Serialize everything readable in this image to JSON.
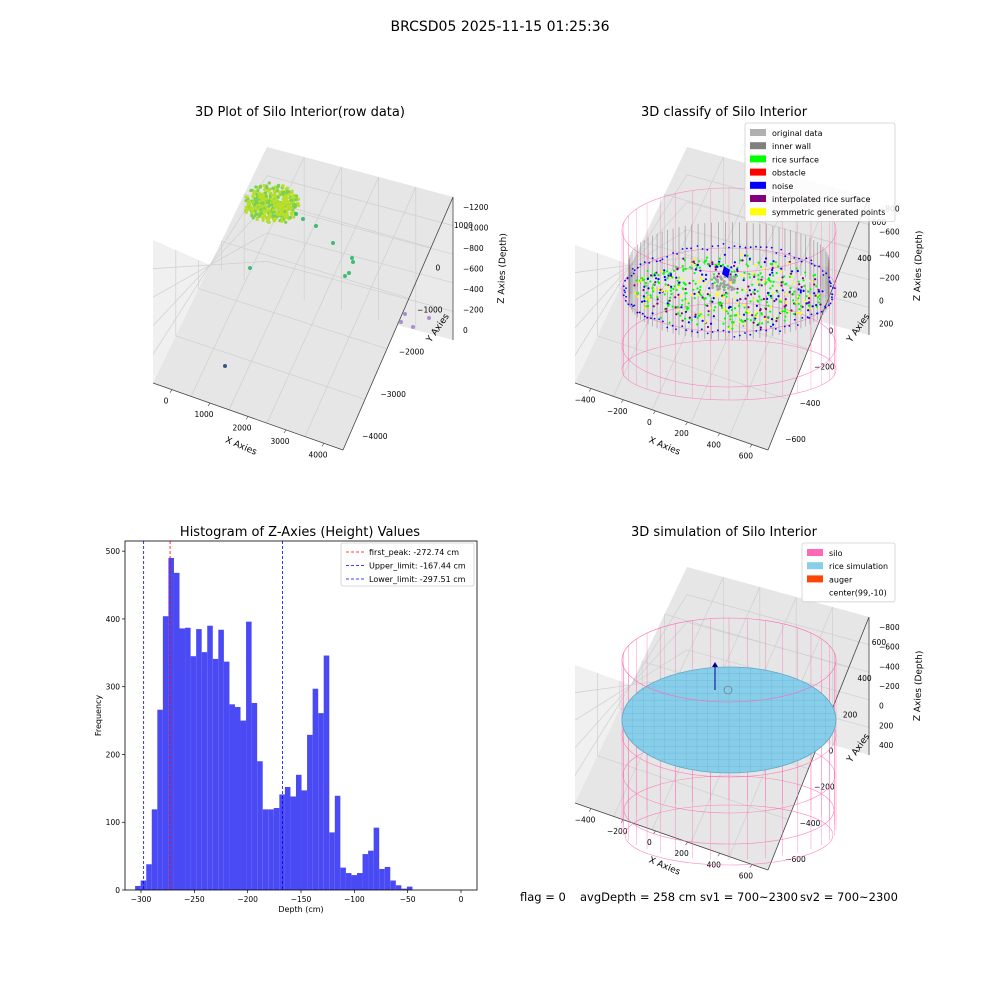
{
  "suptitle": "BRCSD05 2025-11-15 01:25:36",
  "footer": {
    "flag": "flag = 0",
    "avg_depth": "avgDepth = 258 cm",
    "sv1": "sv1 = 700~2300",
    "sv2": "sv2 = 700~2300"
  },
  "chart_data": [
    {
      "type": "scatter",
      "projection": "3d",
      "title": "3D Plot of Silo Interior(row data)",
      "xlabel": "X Axies",
      "ylabel": "Y Axies",
      "zlabel": "Z Axies (Depth)",
      "x_ticks": [
        "0",
        "1000",
        "2000",
        "3000",
        "4000"
      ],
      "y_ticks": [
        "1000",
        "0",
        "−1000",
        "−2000",
        "−3000",
        "−4000"
      ],
      "z_ticks": [
        "0",
        "−200",
        "−400",
        "−600",
        "−800",
        "−1000",
        "−1200"
      ],
      "colormap": "viridis",
      "colors": {
        "surface_a": "#b8de29",
        "surface_b": "#7ad151",
        "mid": "#3fbc73",
        "far": "#a98fd0",
        "deep": "#3b528b"
      }
    },
    {
      "type": "scatter",
      "projection": "3d",
      "title": "3D classify of Silo Interior",
      "xlabel": "X Axies",
      "ylabel": "Y Axies",
      "zlabel": "Z Axies (Depth)",
      "x_ticks": [
        "−400",
        "−200",
        "0",
        "200",
        "400",
        "600"
      ],
      "y_ticks": [
        "600",
        "400",
        "200",
        "0",
        "−200",
        "−400",
        "−600"
      ],
      "z_ticks": [
        "200",
        "0",
        "−200",
        "−400",
        "−600",
        "−800"
      ],
      "z_top_tick_partial": "00",
      "legend_position": "upper right",
      "legend": [
        {
          "label": "original data",
          "color": "#b0b0b0"
        },
        {
          "label": "inner wall",
          "color": "#808080"
        },
        {
          "label": "rice surface",
          "color": "#00ff00"
        },
        {
          "label": "obstacle",
          "color": "#ff0000"
        },
        {
          "label": "noise",
          "color": "#0000ff"
        },
        {
          "label": "interpolated rice surface",
          "color": "#800080"
        },
        {
          "label": "symmetric generated points",
          "color": "#ffff00"
        }
      ],
      "wireframe_color": "#ff69b4"
    },
    {
      "type": "bar",
      "title": "Histogram of Z-Axies (Height) Values",
      "xlabel": "Depth (cm)",
      "ylabel": "Frequency",
      "xlim": [
        -315,
        15
      ],
      "ylim": [
        0,
        515
      ],
      "bin_start": -305.5,
      "bin_width": 5.2,
      "bar_color": "#4a4af5",
      "x_ticks": [
        -300,
        -250,
        -200,
        -150,
        -100,
        -50,
        0
      ],
      "y_ticks": [
        0,
        100,
        200,
        300,
        400,
        500
      ],
      "values": [
        6,
        14,
        38,
        119,
        266,
        404,
        490,
        468,
        386,
        387,
        345,
        385,
        351,
        390,
        341,
        384,
        337,
        274,
        270,
        250,
        396,
        276,
        190,
        119,
        119,
        121,
        141,
        152,
        138,
        170,
        147,
        229,
        297,
        261,
        346,
        85,
        139,
        33,
        25,
        22,
        25,
        53,
        58,
        92,
        31,
        34,
        14,
        7,
        2,
        5
      ],
      "vlines": [
        {
          "label": "first_peak: -272.74 cm",
          "x": -272.74,
          "color": "#ff0000"
        },
        {
          "label": "Upper_limit: -167.44 cm",
          "x": -167.44,
          "color": "#0000ff"
        },
        {
          "label": "Lower_limit: -297.51 cm",
          "x": -297.51,
          "color": "#0000ff"
        }
      ],
      "legend_position": "upper right"
    },
    {
      "type": "surface",
      "projection": "3d",
      "title": "3D simulation of Silo Interior",
      "xlabel": "X Axies",
      "ylabel": "Y Axies",
      "zlabel": "Z Axies (Depth)",
      "x_ticks": [
        "−400",
        "−200",
        "0",
        "200",
        "400",
        "600"
      ],
      "y_ticks": [
        "600",
        "400",
        "200",
        "0",
        "−200",
        "−400",
        "−600"
      ],
      "z_ticks": [
        "400",
        "200",
        "0",
        "−200",
        "−400",
        "−600",
        "−800"
      ],
      "legend_position": "upper right",
      "legend": [
        {
          "label": "silo",
          "color": "#ff69b4"
        },
        {
          "label": "rice simulation",
          "color": "#87ceeb"
        },
        {
          "label": "auger",
          "color": "#ff4500"
        },
        {
          "label": "center(99,-10)",
          "color": "#ffffff"
        }
      ]
    }
  ]
}
